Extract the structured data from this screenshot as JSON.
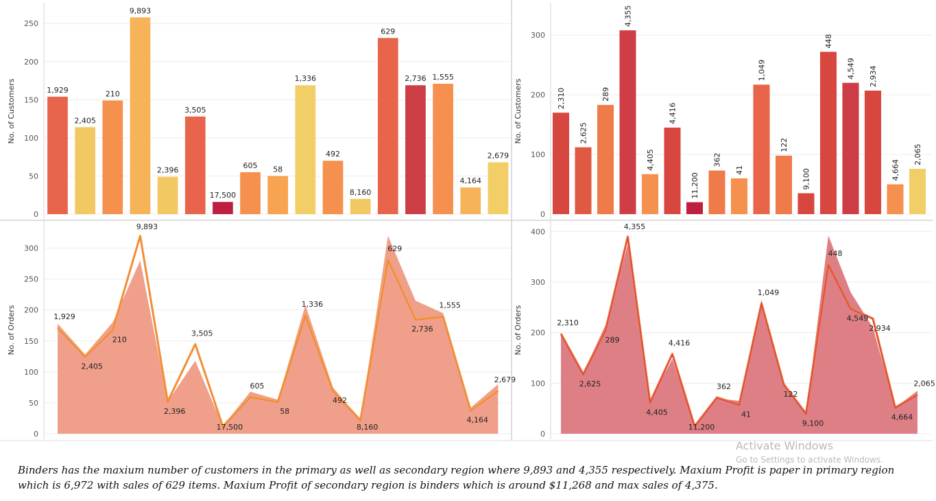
{
  "chart_data": [
    {
      "id": "top-left",
      "type": "bar",
      "ylabel": "No. of Customers",
      "ylim": [
        0,
        270
      ],
      "yticks": [
        0,
        50,
        100,
        150,
        200,
        250
      ],
      "values": [
        154,
        114,
        149,
        258,
        49,
        128,
        16,
        55,
        50,
        169,
        70,
        20,
        231,
        169,
        171,
        35,
        68
      ],
      "labels": [
        "1,929",
        "2,405",
        "210",
        "9,893",
        "2,396",
        "3,505",
        "17,500",
        "605",
        "58",
        "1,336",
        "492",
        "8,160",
        "629",
        "2,736",
        "1,555",
        "4,164",
        "2,679"
      ],
      "colors": [
        "#e8644a",
        "#f2c862",
        "#f6904e",
        "#f7b357",
        "#f2c862",
        "#e8644a",
        "#bf1f3f",
        "#f6904e",
        "#f7a350",
        "#f2ce66",
        "#f6904e",
        "#f2c862",
        "#e8644a",
        "#cc3d45",
        "#f6904e",
        "#f7b357",
        "#f2ce66"
      ]
    },
    {
      "id": "top-right",
      "type": "bar",
      "ylabel": "No. of Customers",
      "ylim": [
        0,
        345
      ],
      "yticks": [
        0,
        100,
        200,
        300
      ],
      "values": [
        170,
        112,
        183,
        308,
        67,
        145,
        20,
        73,
        60,
        217,
        98,
        35,
        272,
        220,
        207,
        50,
        76
      ],
      "labels": [
        "2,310",
        "2,625",
        "289",
        "4,355",
        "4,405",
        "4,416",
        "11,200",
        "362",
        "41",
        "1,049",
        "122",
        "9,100",
        "448",
        "4,549",
        "2,934",
        "4,664",
        "2,065"
      ],
      "colors": [
        "#d8473f",
        "#e05a43",
        "#ef7a4a",
        "#cf3e44",
        "#f6904e",
        "#d8473f",
        "#bf1f3f",
        "#ef7a4a",
        "#f6904e",
        "#e8644a",
        "#ef7a4a",
        "#d8473f",
        "#d8473f",
        "#cc3d45",
        "#d8473f",
        "#f6904e",
        "#f2ce66"
      ]
    },
    {
      "id": "bottom-left",
      "type": "area",
      "ylabel": "No. of Orders",
      "ylim": [
        0,
        335
      ],
      "yticks": [
        0,
        50,
        100,
        150,
        200,
        250,
        300
      ],
      "series": [
        {
          "values": [
            178,
            128,
            180,
            280,
            52,
            118,
            12,
            68,
            55,
            208,
            75,
            22,
            320,
            215,
            195,
            42,
            80
          ]
        },
        {
          "values": [
            172,
            125,
            168,
            320,
            52,
            145,
            12,
            60,
            52,
            192,
            70,
            22,
            282,
            185,
            190,
            38,
            70
          ]
        }
      ],
      "labels": [
        "1,929",
        "2,405",
        "210",
        "9,893",
        "2,396",
        "3,505",
        "17,500",
        "605",
        "58",
        "1,336",
        "492",
        "8,160",
        "629",
        "2,736",
        "1,555",
        "4,164",
        "2,679"
      ]
    },
    {
      "id": "bottom-right",
      "type": "area",
      "ylabel": "No. of Orders",
      "ylim": [
        0,
        410
      ],
      "yticks": [
        0,
        100,
        200,
        300,
        400
      ],
      "series": [
        {
          "values": [
            195,
            120,
            215,
            375,
            65,
            148,
            15,
            70,
            65,
            265,
            100,
            38,
            392,
            280,
            210,
            52,
            85
          ]
        },
        {
          "values": [
            198,
            118,
            205,
            390,
            62,
            158,
            15,
            72,
            58,
            258,
            98,
            40,
            335,
            248,
            228,
            52,
            78
          ]
        }
      ],
      "labels": [
        "2,310",
        "2,625",
        "289",
        "4,355",
        "4,405",
        "4,416",
        "11,200",
        "362",
        "41",
        "1,049",
        "122",
        "9,100",
        "448",
        "4,549",
        "2,934",
        "4,664",
        "2,065"
      ]
    }
  ],
  "caption": "Binders has the maxium number of customers in the primary as well as secondary region where 9,893 and 4,355 respectively. Maxium Profit is paper in primary region which is 6,972 with sales of  629 items. Maxium Profit of secondary region is binders which is around $11,268 and max sales of 4,375.",
  "watermark": {
    "title": "Activate Windows",
    "subtitle": "Go to Settings to activate Windows."
  },
  "colors": {
    "grid": "#ececec",
    "axis": "#d4d4d4",
    "area_left": "#ef9f8a",
    "line_left_a": "#f4a442",
    "line_left_b": "#f07b3e",
    "area_right": "#de7f86",
    "line_right_a": "#f07b3e",
    "line_right_b": "#d63c3f"
  }
}
